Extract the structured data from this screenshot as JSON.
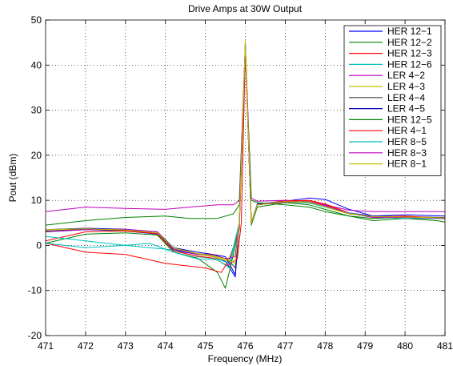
{
  "chart_data": {
    "type": "line",
    "title": "Drive Amps at 30W Output",
    "xlabel": "Frequency (MHz)",
    "ylabel": "Pout (dBm)",
    "xlim": [
      471,
      481
    ],
    "ylim": [
      -20,
      50
    ],
    "xticks": [
      471,
      472,
      473,
      474,
      475,
      476,
      477,
      478,
      479,
      480,
      481
    ],
    "yticks": [
      -20,
      -10,
      0,
      10,
      20,
      30,
      40,
      50
    ],
    "grid": true,
    "legend_position": "top-right",
    "series": [
      {
        "name": "HER 12−1",
        "color": "#0000ff",
        "points": [
          [
            471,
            3.0
          ],
          [
            472,
            3.5
          ],
          [
            473,
            3.2
          ],
          [
            473.8,
            2.5
          ],
          [
            474.2,
            -1.0
          ],
          [
            474.8,
            -2.0
          ],
          [
            475.2,
            -2.5
          ],
          [
            475.5,
            -3.5
          ],
          [
            475.75,
            -7.0
          ],
          [
            475.85,
            5.0
          ],
          [
            476,
            44.5
          ],
          [
            476.15,
            5.0
          ],
          [
            476.3,
            9.0
          ],
          [
            477,
            9.8
          ],
          [
            477.6,
            10.5
          ],
          [
            478,
            10.2
          ],
          [
            478.6,
            8.0
          ],
          [
            479.2,
            6.5
          ],
          [
            480,
            6.8
          ],
          [
            481,
            6.5
          ]
        ]
      },
      {
        "name": "HER 12−2",
        "color": "#008000",
        "points": [
          [
            471,
            0.5
          ],
          [
            472,
            2.5
          ],
          [
            473,
            2.8
          ],
          [
            473.8,
            2.3
          ],
          [
            474.2,
            -1.5
          ],
          [
            474.8,
            -2.8
          ],
          [
            475.3,
            -6.0
          ],
          [
            475.5,
            -9.5
          ],
          [
            475.65,
            -4.0
          ],
          [
            475.85,
            4.0
          ],
          [
            476,
            45.0
          ],
          [
            476.15,
            4.5
          ],
          [
            476.3,
            8.5
          ],
          [
            477,
            9.5
          ],
          [
            477.6,
            9.0
          ],
          [
            478,
            8.0
          ],
          [
            478.6,
            6.5
          ],
          [
            479.2,
            6.0
          ],
          [
            480,
            6.2
          ],
          [
            481,
            6.0
          ]
        ]
      },
      {
        "name": "HER 12−3",
        "color": "#ff0000",
        "points": [
          [
            471,
            0.5
          ],
          [
            472,
            -1.5
          ],
          [
            473,
            -2.0
          ],
          [
            473.5,
            -3.0
          ],
          [
            474,
            -4.0
          ],
          [
            474.5,
            -4.5
          ],
          [
            475,
            -5.0
          ],
          [
            475.4,
            -6.0
          ],
          [
            475.6,
            -3.0
          ],
          [
            475.85,
            3.5
          ],
          [
            476,
            44.0
          ],
          [
            476.15,
            5.0
          ],
          [
            476.3,
            9.0
          ],
          [
            477,
            10.0
          ],
          [
            477.6,
            9.8
          ],
          [
            478,
            9.0
          ],
          [
            478.6,
            7.0
          ],
          [
            479.2,
            6.5
          ],
          [
            480,
            6.2
          ],
          [
            481,
            6.0
          ]
        ]
      },
      {
        "name": "HER 12−6",
        "color": "#00bfbf",
        "points": [
          [
            471,
            0.5
          ],
          [
            472,
            -0.5
          ],
          [
            473,
            0.0
          ],
          [
            473.6,
            -0.5
          ],
          [
            474.2,
            -1.0
          ],
          [
            474.8,
            -2.5
          ],
          [
            475.3,
            -3.0
          ],
          [
            475.6,
            -4.0
          ],
          [
            475.85,
            5.0
          ],
          [
            476,
            44.0
          ],
          [
            476.15,
            5.0
          ],
          [
            476.3,
            9.2
          ],
          [
            477,
            9.8
          ],
          [
            477.6,
            9.5
          ],
          [
            478,
            8.8
          ],
          [
            478.6,
            7.0
          ],
          [
            479.2,
            6.3
          ],
          [
            480,
            6.0
          ],
          [
            481,
            6.0
          ]
        ]
      },
      {
        "name": "LER 4−2",
        "color": "#bf00bf",
        "points": [
          [
            471,
            7.5
          ],
          [
            472,
            8.5
          ],
          [
            473,
            8.2
          ],
          [
            474,
            8.0
          ],
          [
            474.6,
            8.5
          ],
          [
            475.3,
            9.0
          ],
          [
            475.7,
            9.0
          ],
          [
            475.85,
            10.0
          ],
          [
            476,
            44.5
          ],
          [
            476.15,
            10.5
          ],
          [
            476.3,
            9.8
          ],
          [
            477,
            10.0
          ],
          [
            477.6,
            9.5
          ],
          [
            478,
            9.0
          ],
          [
            478.6,
            7.8
          ],
          [
            479.2,
            7.5
          ],
          [
            480,
            7.5
          ],
          [
            481,
            7.5
          ]
        ]
      },
      {
        "name": "LER 4−3",
        "color": "#bfbf00",
        "points": [
          [
            471,
            3.0
          ],
          [
            472,
            3.8
          ],
          [
            473,
            3.5
          ],
          [
            473.8,
            2.8
          ],
          [
            474.2,
            -0.5
          ],
          [
            474.8,
            -2.0
          ],
          [
            475.2,
            -2.5
          ],
          [
            475.55,
            -3.5
          ],
          [
            475.75,
            -2.0
          ],
          [
            475.85,
            5.0
          ],
          [
            476,
            45.5
          ],
          [
            476.15,
            5.0
          ],
          [
            476.3,
            9.0
          ],
          [
            477,
            9.6
          ],
          [
            477.6,
            9.8
          ],
          [
            478,
            8.5
          ],
          [
            478.6,
            7.0
          ],
          [
            479.2,
            6.5
          ],
          [
            480,
            6.3
          ],
          [
            481,
            6.0
          ]
        ]
      },
      {
        "name": "LER 4−4",
        "color": "#404040",
        "points": [
          [
            471,
            3.2
          ],
          [
            472,
            3.6
          ],
          [
            473,
            3.3
          ],
          [
            473.8,
            2.6
          ],
          [
            474.2,
            -0.8
          ],
          [
            474.8,
            -1.8
          ],
          [
            475.2,
            -2.2
          ],
          [
            475.55,
            -3.0
          ],
          [
            475.75,
            -5.0
          ],
          [
            475.85,
            5.0
          ],
          [
            476,
            45.0
          ],
          [
            476.15,
            5.0
          ],
          [
            476.3,
            9.0
          ],
          [
            477,
            9.7
          ],
          [
            477.6,
            9.6
          ],
          [
            478,
            8.6
          ],
          [
            478.6,
            7.0
          ],
          [
            479.2,
            6.5
          ],
          [
            480,
            6.4
          ],
          [
            481,
            6.2
          ]
        ]
      },
      {
        "name": "LER 4−5",
        "color": "#0000bf",
        "points": [
          [
            471,
            3.5
          ],
          [
            472,
            3.8
          ],
          [
            473,
            3.6
          ],
          [
            473.8,
            3.0
          ],
          [
            474.2,
            -0.5
          ],
          [
            474.8,
            -1.5
          ],
          [
            475.2,
            -2.0
          ],
          [
            475.5,
            -2.5
          ],
          [
            475.75,
            -6.5
          ],
          [
            475.85,
            5.0
          ],
          [
            476,
            44.0
          ],
          [
            476.15,
            5.0
          ],
          [
            476.3,
            9.2
          ],
          [
            477,
            9.7
          ],
          [
            477.6,
            9.6
          ],
          [
            478,
            8.7
          ],
          [
            478.6,
            7.2
          ],
          [
            479.2,
            6.5
          ],
          [
            480,
            6.3
          ],
          [
            481,
            6.0
          ]
        ]
      },
      {
        "name": "HER 12−5",
        "color": "#008000",
        "points": [
          [
            471,
            4.5
          ],
          [
            472,
            5.5
          ],
          [
            473,
            6.2
          ],
          [
            474,
            6.5
          ],
          [
            474.6,
            6.0
          ],
          [
            475.3,
            6.0
          ],
          [
            475.7,
            7.0
          ],
          [
            475.85,
            9.0
          ],
          [
            476,
            43.5
          ],
          [
            476.15,
            10.0
          ],
          [
            476.3,
            9.5
          ],
          [
            477,
            9.0
          ],
          [
            477.6,
            8.5
          ],
          [
            478,
            7.5
          ],
          [
            478.6,
            6.5
          ],
          [
            479.2,
            5.5
          ],
          [
            480,
            6.0
          ],
          [
            480.8,
            5.5
          ],
          [
            481,
            5.2
          ]
        ]
      },
      {
        "name": "HER 4−1",
        "color": "#ff0000",
        "points": [
          [
            471,
            1.0
          ],
          [
            472,
            3.0
          ],
          [
            473,
            3.2
          ],
          [
            473.8,
            2.6
          ],
          [
            474.2,
            -1.2
          ],
          [
            474.8,
            -2.4
          ],
          [
            475.2,
            -2.8
          ],
          [
            475.55,
            -4.5
          ],
          [
            475.8,
            -3.0
          ],
          [
            475.9,
            5.0
          ],
          [
            476,
            43.0
          ],
          [
            476.15,
            5.0
          ],
          [
            476.3,
            9.0
          ],
          [
            477,
            9.8
          ],
          [
            477.6,
            10.0
          ],
          [
            478,
            9.2
          ],
          [
            478.6,
            7.2
          ],
          [
            479.2,
            6.3
          ],
          [
            480,
            6.5
          ],
          [
            481,
            6.0
          ]
        ]
      },
      {
        "name": "HER 8−5",
        "color": "#00bfbf",
        "points": [
          [
            471,
            2.0
          ],
          [
            472,
            1.0
          ],
          [
            473,
            0.0
          ],
          [
            473.6,
            0.5
          ],
          [
            474.2,
            -1.5
          ],
          [
            474.8,
            -3.0
          ],
          [
            475.3,
            -3.2
          ],
          [
            475.6,
            -5.0
          ],
          [
            475.85,
            5.0
          ],
          [
            476,
            44.0
          ],
          [
            476.15,
            5.0
          ],
          [
            476.3,
            9.0
          ],
          [
            477,
            9.6
          ],
          [
            477.6,
            9.4
          ],
          [
            478,
            8.5
          ],
          [
            478.6,
            7.2
          ],
          [
            479.2,
            6.2
          ],
          [
            480,
            6.0
          ],
          [
            481,
            6.0
          ]
        ]
      },
      {
        "name": "HER 8−3",
        "color": "#bf00bf",
        "points": [
          [
            471,
            3.0
          ],
          [
            472,
            3.5
          ],
          [
            473,
            3.6
          ],
          [
            473.8,
            3.0
          ],
          [
            474.2,
            -0.8
          ],
          [
            474.8,
            -2.0
          ],
          [
            475.2,
            -2.0
          ],
          [
            475.5,
            -3.0
          ],
          [
            475.75,
            -2.5
          ],
          [
            475.85,
            5.0
          ],
          [
            476,
            44.5
          ],
          [
            476.15,
            5.0
          ],
          [
            476.3,
            9.0
          ],
          [
            477,
            9.6
          ],
          [
            477.6,
            9.7
          ],
          [
            478,
            8.8
          ],
          [
            478.6,
            7.1
          ],
          [
            479.2,
            6.2
          ],
          [
            480,
            6.2
          ],
          [
            481,
            6.0
          ]
        ]
      },
      {
        "name": "HER 8−1",
        "color": "#bfbf00",
        "points": [
          [
            471,
            3.5
          ],
          [
            472,
            3.7
          ],
          [
            473,
            3.4
          ],
          [
            473.8,
            2.8
          ],
          [
            474.2,
            -0.6
          ],
          [
            474.8,
            -1.8
          ],
          [
            475.2,
            -2.3
          ],
          [
            475.55,
            -3.2
          ],
          [
            475.75,
            -4.0
          ],
          [
            475.85,
            5.0
          ],
          [
            476,
            45.0
          ],
          [
            476.15,
            5.0
          ],
          [
            476.3,
            9.0
          ],
          [
            477,
            9.7
          ],
          [
            477.6,
            9.6
          ],
          [
            478,
            8.6
          ],
          [
            478.6,
            7.0
          ],
          [
            479.2,
            6.4
          ],
          [
            480,
            6.3
          ],
          [
            481,
            6.1
          ]
        ]
      }
    ]
  }
}
